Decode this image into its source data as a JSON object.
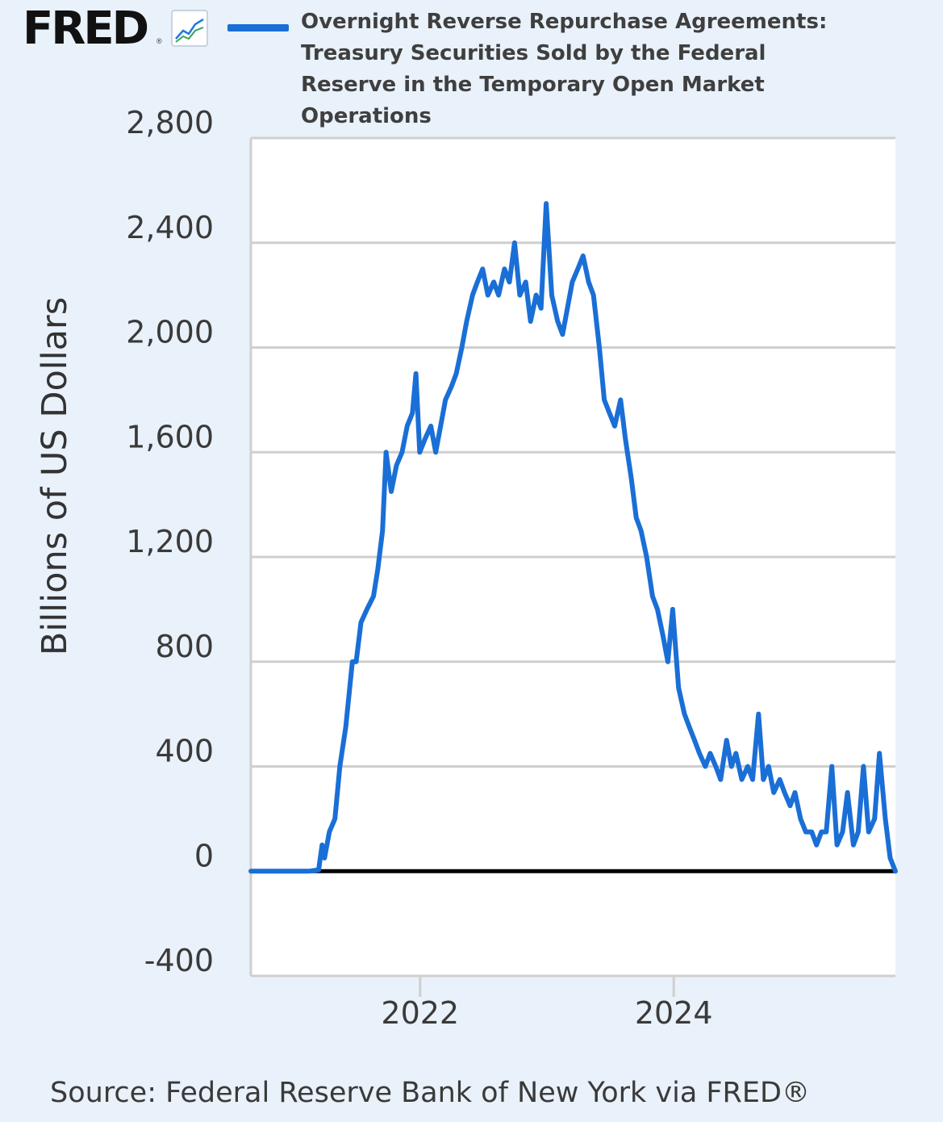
{
  "brand": {
    "logo_text": "FRED",
    "registered_mark": "®",
    "chart_icon": "line-chart-icon"
  },
  "colors": {
    "background": "#e9f1fa",
    "plot_background": "#ffffff",
    "series_line": "#1a6fd6",
    "gridline": "#cfcfcf",
    "zero_line": "#000000"
  },
  "source_note": "Source: Federal Reserve Bank of New York via FRED®",
  "chart_data": {
    "type": "line",
    "title": "Overnight Reverse Repurchase Agreements: Treasury Securities Sold by the Federal Reserve in the Temporary Open Market Operations",
    "xlabel": "",
    "ylabel": "Billions of US Dollars",
    "ylim": [
      -400,
      2800
    ],
    "xlim": [
      "2020-09-01",
      "2025-09-30"
    ],
    "y_ticks": [
      2800,
      2400,
      2000,
      1600,
      1200,
      800,
      400,
      0,
      -400
    ],
    "y_tick_labels": [
      "2,800",
      "2,400",
      "2,000",
      "1,600",
      "1,200",
      "800",
      "400",
      "0",
      "-400"
    ],
    "x_ticks": [
      "2022-01-01",
      "2024-01-01"
    ],
    "x_tick_labels": [
      "2022",
      "2024"
    ],
    "grid": true,
    "legend": "top",
    "series": [
      {
        "name": "Overnight Reverse Repurchase Agreements: Treasury Securities Sold by the Federal Reserve in the Temporary Open Market Operations",
        "x": [
          "2020-09-01",
          "2020-12-01",
          "2021-02-15",
          "2021-03-15",
          "2021-03-25",
          "2021-04-01",
          "2021-04-15",
          "2021-05-01",
          "2021-05-15",
          "2021-06-01",
          "2021-06-20",
          "2021-07-01",
          "2021-07-15",
          "2021-08-01",
          "2021-08-20",
          "2021-09-01",
          "2021-09-15",
          "2021-09-25",
          "2021-10-10",
          "2021-10-25",
          "2021-11-10",
          "2021-11-25",
          "2021-12-10",
          "2021-12-20",
          "2021-12-31",
          "2022-01-15",
          "2022-02-01",
          "2022-02-15",
          "2022-03-01",
          "2022-03-15",
          "2022-04-01",
          "2022-04-15",
          "2022-05-01",
          "2022-05-15",
          "2022-06-01",
          "2022-06-15",
          "2022-06-30",
          "2022-07-15",
          "2022-08-01",
          "2022-08-15",
          "2022-09-01",
          "2022-09-15",
          "2022-09-30",
          "2022-10-15",
          "2022-11-01",
          "2022-11-15",
          "2022-12-01",
          "2022-12-15",
          "2022-12-30",
          "2023-01-15",
          "2023-02-01",
          "2023-02-15",
          "2023-03-01",
          "2023-03-15",
          "2023-03-31",
          "2023-04-15",
          "2023-05-01",
          "2023-05-15",
          "2023-06-01",
          "2023-06-15",
          "2023-06-30",
          "2023-07-15",
          "2023-08-01",
          "2023-08-15",
          "2023-09-01",
          "2023-09-15",
          "2023-09-29",
          "2023-10-15",
          "2023-11-01",
          "2023-11-15",
          "2023-12-01",
          "2023-12-15",
          "2023-12-29",
          "2024-01-15",
          "2024-02-01",
          "2024-02-15",
          "2024-03-01",
          "2024-03-15",
          "2024-04-01",
          "2024-04-15",
          "2024-05-01",
          "2024-05-15",
          "2024-06-01",
          "2024-06-15",
          "2024-06-28",
          "2024-07-15",
          "2024-08-01",
          "2024-08-15",
          "2024-09-01",
          "2024-09-15",
          "2024-09-30",
          "2024-10-15",
          "2024-11-01",
          "2024-11-15",
          "2024-12-01",
          "2024-12-15",
          "2024-12-31",
          "2025-01-15",
          "2025-02-01",
          "2025-02-15",
          "2025-03-01",
          "2025-03-15",
          "2025-03-31",
          "2025-04-15",
          "2025-05-01",
          "2025-05-15",
          "2025-06-01",
          "2025-06-15",
          "2025-06-30",
          "2025-07-15",
          "2025-08-01",
          "2025-08-15",
          "2025-09-01",
          "2025-09-15",
          "2025-09-30"
        ],
        "y": [
          0,
          0,
          0,
          5,
          100,
          50,
          150,
          200,
          400,
          550,
          800,
          800,
          950,
          1000,
          1050,
          1150,
          1300,
          1600,
          1450,
          1550,
          1600,
          1700,
          1750,
          1900,
          1600,
          1650,
          1700,
          1600,
          1700,
          1800,
          1850,
          1900,
          2000,
          2100,
          2200,
          2250,
          2300,
          2200,
          2250,
          2200,
          2300,
          2250,
          2400,
          2200,
          2250,
          2100,
          2200,
          2150,
          2550,
          2200,
          2100,
          2050,
          2150,
          2250,
          2300,
          2350,
          2250,
          2200,
          2000,
          1800,
          1750,
          1700,
          1800,
          1650,
          1500,
          1350,
          1300,
          1200,
          1050,
          1000,
          900,
          800,
          1000,
          700,
          600,
          550,
          500,
          450,
          400,
          450,
          400,
          350,
          500,
          400,
          450,
          350,
          400,
          350,
          600,
          350,
          400,
          300,
          350,
          300,
          250,
          300,
          200,
          150,
          150,
          100,
          150,
          150,
          400,
          100,
          150,
          300,
          100,
          150,
          400,
          150,
          200,
          450,
          200,
          50,
          0
        ]
      }
    ]
  }
}
